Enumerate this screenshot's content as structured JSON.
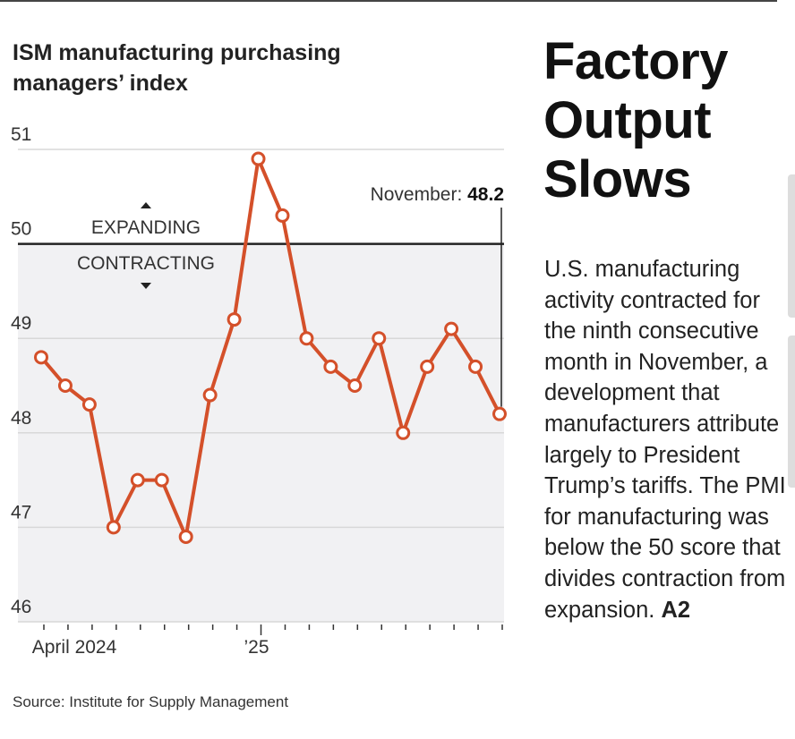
{
  "headline": [
    "Factory",
    "Output",
    "Slows"
  ],
  "body_text": "U.S. manufacturing activity contracted for the ninth consecutive month in November, a development that manufacturers attribute largely to President Trump’s tariffs. The PMI for manufacturing was below the 50 score that divides contraction from expansion.",
  "body_ref": "A2",
  "chart_data": {
    "type": "line",
    "title": "ISM manufacturing purchasing managers’ index",
    "source": "Source: Institute for Supply Management",
    "x": [
      "Apr 2024",
      "May 2024",
      "Jun 2024",
      "Jul 2024",
      "Aug 2024",
      "Sep 2024",
      "Oct 2024",
      "Nov 2024",
      "Dec 2024",
      "Jan 2025",
      "Feb 2025",
      "Mar 2025",
      "Apr 2025",
      "May 2025",
      "Jun 2025",
      "Jul 2025",
      "Aug 2025",
      "Sep 2025",
      "Oct 2025",
      "Nov 2025"
    ],
    "series": [
      {
        "name": "ISM manufacturing PMI",
        "values": [
          48.8,
          48.5,
          48.3,
          47.0,
          47.5,
          47.5,
          46.9,
          48.4,
          49.2,
          50.9,
          50.3,
          49.0,
          48.7,
          48.5,
          49.0,
          48.0,
          48.7,
          49.1,
          48.7,
          48.2
        ]
      }
    ],
    "ylim": [
      46,
      51
    ],
    "yticks": [
      46,
      47,
      48,
      49,
      50,
      51
    ],
    "xtick_labels": [
      {
        "index": 0,
        "label": "April 2024"
      },
      {
        "index": 9,
        "label": "’25"
      }
    ],
    "threshold": 50,
    "threshold_labels": {
      "above": "EXPANDING",
      "below": "CONTRACTING"
    },
    "annotation": {
      "label": "November:",
      "value": "48.2",
      "index": 19
    },
    "colors": {
      "line": "#d4502a",
      "shade": "#f1f1f3",
      "grid": "#d8d8d8"
    }
  }
}
